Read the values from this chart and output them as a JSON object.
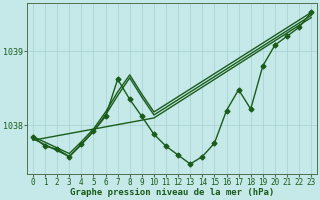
{
  "title": "Graphe pression niveau de la mer (hPa)",
  "background_color": "#c5e8e8",
  "line_color": "#1a5c1a",
  "grid_color": "#a8d0d0",
  "xlim_min": -0.5,
  "xlim_max": 23.5,
  "ylim_min": 1037.35,
  "ylim_max": 1039.65,
  "yticks": [
    1038,
    1039
  ],
  "xticks": [
    0,
    1,
    2,
    3,
    4,
    5,
    6,
    7,
    8,
    9,
    10,
    11,
    12,
    13,
    14,
    15,
    16,
    17,
    18,
    19,
    20,
    21,
    22,
    23
  ],
  "main_x": [
    0,
    1,
    2,
    3,
    4,
    5,
    6,
    7,
    8,
    9,
    10,
    11,
    12,
    13,
    14,
    15,
    16,
    17,
    18,
    19,
    20,
    21,
    22,
    23
  ],
  "main_y": [
    1037.85,
    1037.72,
    1037.68,
    1037.58,
    1037.75,
    1037.92,
    1038.12,
    1038.62,
    1038.35,
    1038.12,
    1037.88,
    1037.72,
    1037.6,
    1037.48,
    1037.58,
    1037.76,
    1038.2,
    1038.48,
    1038.22,
    1038.8,
    1039.08,
    1039.2,
    1039.32,
    1039.52
  ],
  "line2_x": [
    0,
    3,
    4,
    5,
    6,
    7,
    8,
    9,
    10,
    23
  ],
  "line2_y": [
    1037.85,
    1037.62,
    1037.78,
    1037.95,
    1038.18,
    1038.45,
    1038.68,
    1038.42,
    1038.18,
    1039.52
  ],
  "line3_x": [
    0,
    3,
    4,
    5,
    6,
    7,
    8,
    9,
    10,
    23
  ],
  "line3_y": [
    1037.82,
    1037.58,
    1037.74,
    1037.92,
    1038.14,
    1038.4,
    1038.64,
    1038.38,
    1038.14,
    1039.48
  ],
  "line4_x": [
    0,
    10,
    23
  ],
  "line4_y": [
    1037.8,
    1038.1,
    1039.45
  ],
  "marker": "D",
  "markersize": 2.5,
  "linewidth": 1.0,
  "tick_fontsize": 6.0,
  "label_fontsize": 6.5
}
